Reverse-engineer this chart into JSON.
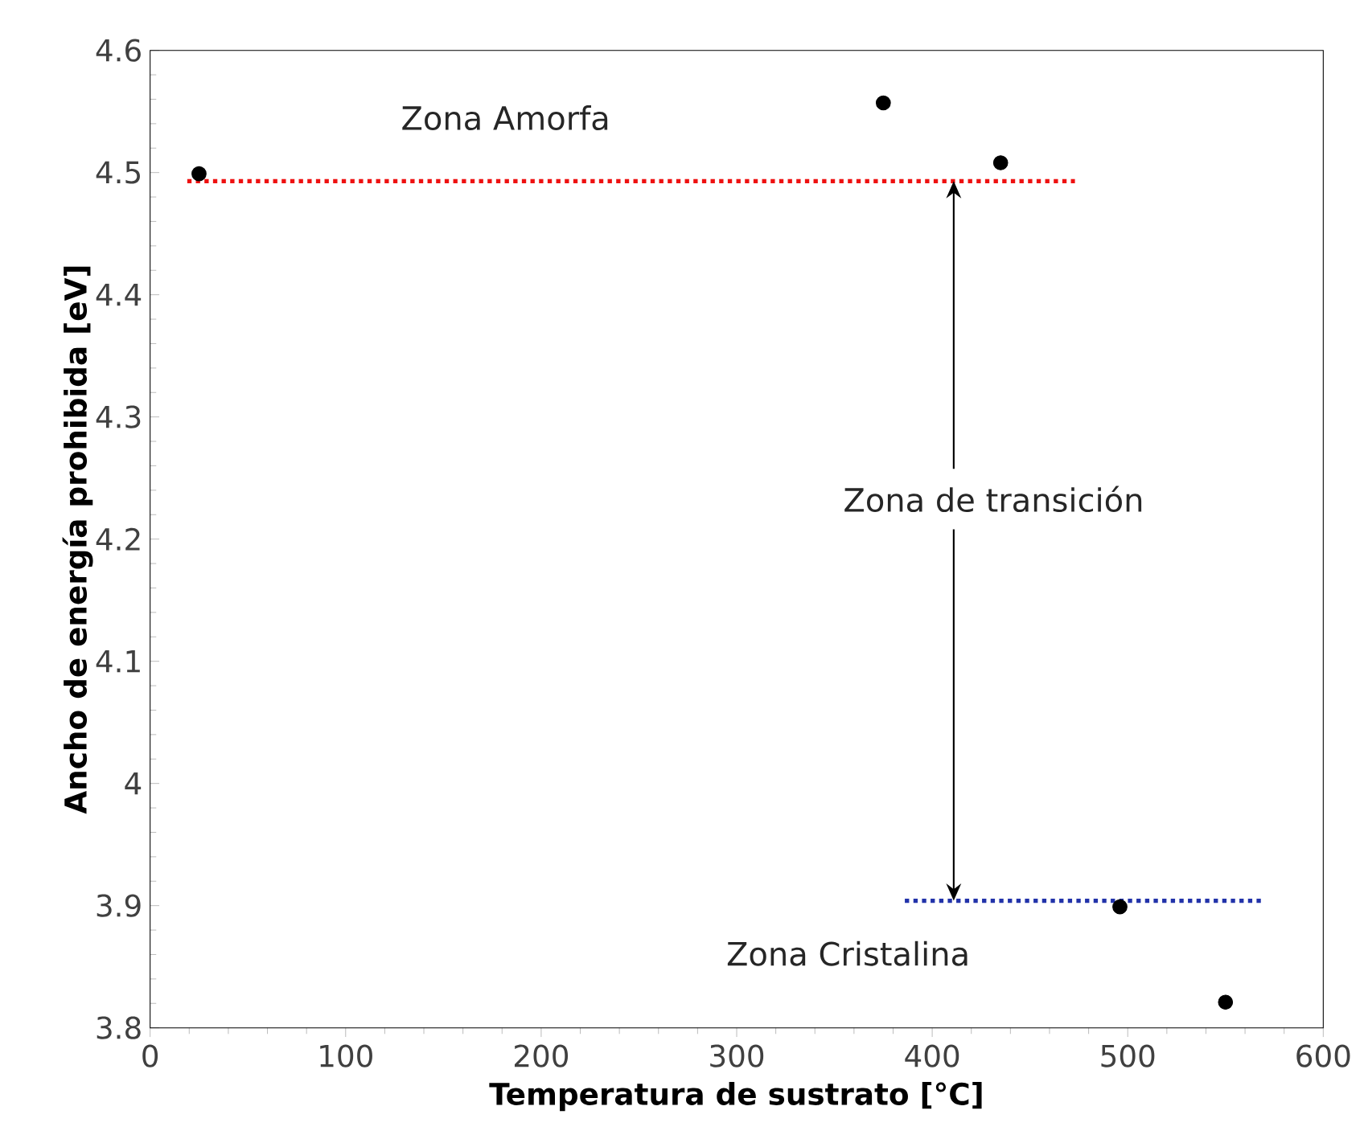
{
  "chart_data": {
    "type": "scatter",
    "xlabel": "Temperatura de sustrato [°C]",
    "ylabel": "Ancho de energía prohibida [eV]",
    "xlim": [
      0,
      600
    ],
    "ylim": [
      3.8,
      4.6
    ],
    "xticks": [
      0,
      100,
      200,
      300,
      400,
      500,
      600
    ],
    "yticks": [
      3.8,
      3.9,
      {
        "value": 4.0,
        "label": "4"
      },
      4.1,
      4.2,
      4.3,
      4.4,
      4.5,
      4.6
    ],
    "marker": "circle",
    "series": [
      {
        "type": "scatter",
        "color": "#000000",
        "x": [
          25,
          375,
          435,
          496,
          550
        ],
        "values": [
          4.499,
          4.557,
          4.508,
          3.899,
          3.821
        ]
      },
      {
        "type": "line",
        "color": "#ee1111",
        "line_style": "dotted",
        "marker": "none",
        "x": [
          19,
          473
        ],
        "values": [
          4.493,
          4.493
        ]
      },
      {
        "type": "line",
        "color": "#2233aa",
        "line_style": "dotted",
        "marker": "none",
        "x": [
          386,
          570
        ],
        "values": [
          3.904,
          3.904
        ]
      }
    ],
    "annotations": [
      "Zona Amorfa",
      {
        "text": "Zona de transición",
        "x": 411,
        "y": 4.493
      },
      "Zona Cristalina"
    ]
  }
}
